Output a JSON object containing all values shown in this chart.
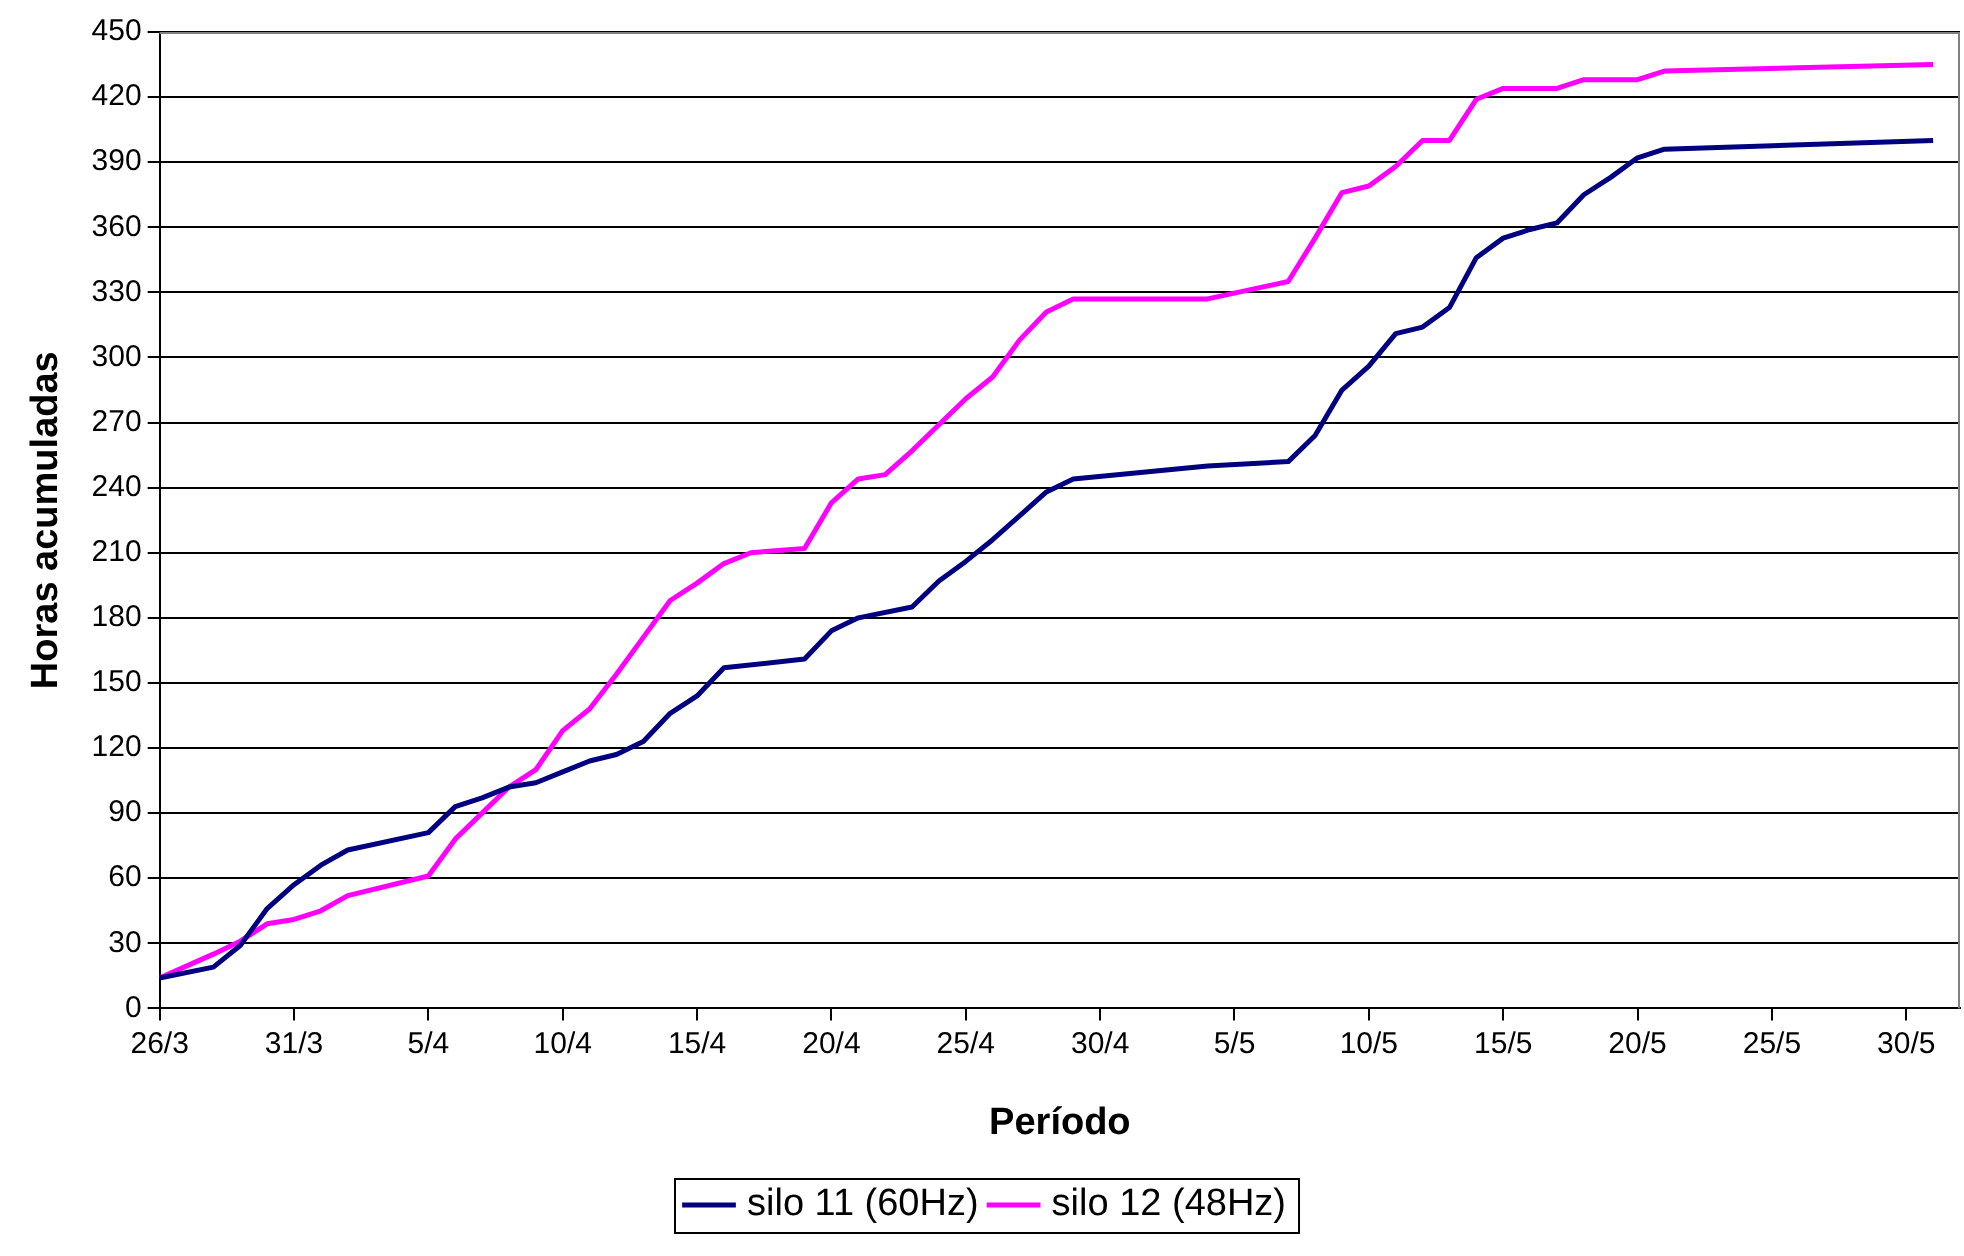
{
  "chart_data": {
    "type": "line",
    "xlabel": "Período",
    "ylabel": "Horas acumuladas",
    "xlim": [
      "--03-26",
      "--06-01"
    ],
    "xticks": [
      {
        "value": "--03-26",
        "label": "26/3"
      },
      {
        "value": "--03-31",
        "label": "31/3"
      },
      {
        "value": "--04-05",
        "label": "5/4"
      },
      {
        "value": "--04-10",
        "label": "10/4"
      },
      {
        "value": "--04-15",
        "label": "15/4"
      },
      {
        "value": "--04-20",
        "label": "20/4"
      },
      {
        "value": "--04-25",
        "label": "25/4"
      },
      {
        "value": "--04-30",
        "label": "30/4"
      },
      {
        "value": "--05-05",
        "label": "5/5"
      },
      {
        "value": "--05-10",
        "label": "10/5"
      },
      {
        "value": "--05-15",
        "label": "15/5"
      },
      {
        "value": "--05-20",
        "label": "20/5"
      },
      {
        "value": "--05-25",
        "label": "25/5"
      },
      {
        "value": "--05-30",
        "label": "30/5"
      }
    ],
    "ylim": [
      0,
      450
    ],
    "yticks": [
      0,
      30,
      60,
      90,
      120,
      150,
      180,
      210,
      240,
      270,
      300,
      330,
      360,
      390,
      420,
      450
    ],
    "grid": "y",
    "legend": "bottom",
    "marker": "none",
    "line_style": "solid",
    "series": [
      {
        "name": "silo 11 (60Hz)",
        "color": "#000080",
        "x": [
          "--03-26",
          "--03-28",
          "--03-29",
          "--03-30",
          "--03-31",
          "--04-01",
          "--04-02",
          "--04-05",
          "--04-06",
          "--04-07",
          "--04-08",
          "--04-09",
          "--04-10",
          "--04-11",
          "--04-12",
          "--04-13",
          "--04-14",
          "--04-15",
          "--04-16",
          "--04-19",
          "--04-20",
          "--04-21",
          "--04-23",
          "--04-24",
          "--04-25",
          "--04-26",
          "--04-27",
          "--04-28",
          "--04-29",
          "--05-04",
          "--05-07",
          "--05-08",
          "--05-09",
          "--05-10",
          "--05-11",
          "--05-12",
          "--05-13",
          "--05-14",
          "--05-15",
          "--05-16",
          "--05-17",
          "--05-18",
          "--05-19",
          "--05-20",
          "--05-21",
          "--05-31"
        ],
        "values": [
          14,
          19,
          29,
          46,
          57,
          66,
          73,
          81,
          93,
          97,
          102,
          104,
          109,
          114,
          117,
          123,
          136,
          144,
          157,
          161,
          174,
          180,
          185,
          197,
          206,
          216,
          227,
          238,
          244,
          250,
          252,
          264,
          285,
          296,
          311,
          314,
          323,
          346,
          355,
          359,
          362,
          375,
          383,
          392,
          396,
          400
        ]
      },
      {
        "name": "silo 12 (48Hz)",
        "color": "#ff00ff",
        "x": [
          "--03-26",
          "--03-28",
          "--03-29",
          "--03-30",
          "--03-31",
          "--04-01",
          "--04-02",
          "--04-05",
          "--04-06",
          "--04-07",
          "--04-08",
          "--04-09",
          "--04-10",
          "--04-11",
          "--04-12",
          "--04-13",
          "--04-14",
          "--04-15",
          "--04-16",
          "--04-17",
          "--04-19",
          "--04-20",
          "--04-21",
          "--04-22",
          "--04-23",
          "--04-24",
          "--04-25",
          "--04-26",
          "--04-27",
          "--04-28",
          "--04-29",
          "--05-04",
          "--05-07",
          "--05-08",
          "--05-09",
          "--05-10",
          "--05-11",
          "--05-12",
          "--05-13",
          "--05-14",
          "--05-15",
          "--05-17",
          "--05-18",
          "--05-20",
          "--05-21",
          "--05-31"
        ],
        "values": [
          14,
          25,
          31,
          39,
          41,
          45,
          52,
          61,
          78,
          90,
          102,
          110,
          128,
          138,
          154,
          171,
          188,
          196,
          205,
          210,
          212,
          233,
          244,
          246,
          257,
          269,
          281,
          291,
          308,
          321,
          327,
          327,
          335,
          355,
          376,
          379,
          388,
          400,
          400,
          419,
          424,
          424,
          428,
          428,
          432,
          435
        ]
      }
    ]
  }
}
